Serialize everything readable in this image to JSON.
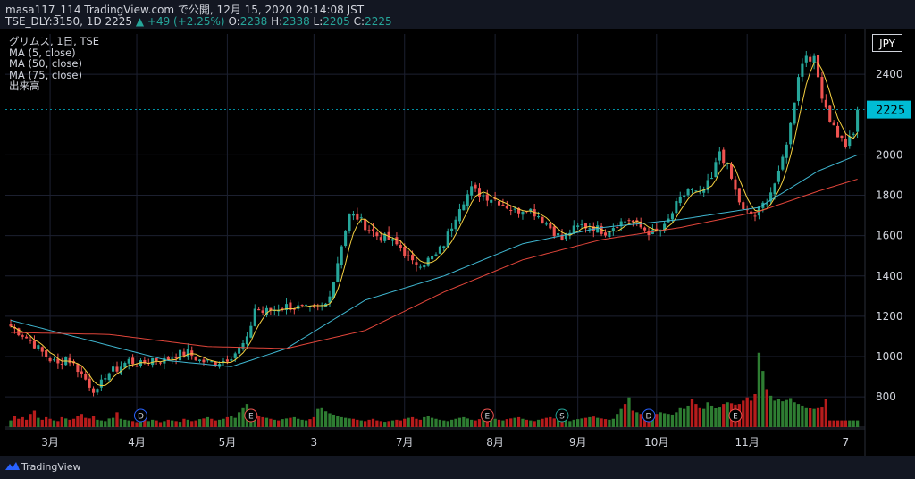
{
  "header": {
    "publish_line": "masa117_114 TradingView.com で公開, 12月 15, 2020 20:14:08 JST",
    "symbol": "TSE_DLY:3150, 1D 2225",
    "change": "▲ +49 (+2.25%)",
    "o_label": "O:",
    "o_value": "2238",
    "h_label": "H:",
    "h_value": "2338",
    "l_label": "L:",
    "l_value": "2205",
    "c_label": "C:",
    "c_value": "2225"
  },
  "legend": {
    "title": "グリムス, 1日, TSE",
    "ma5": "MA (5, close)",
    "ma50": "MA (50, close)",
    "ma75": "MA (75, close)",
    "volume": "出来高"
  },
  "currency": "JPY",
  "price_badge": "2225",
  "footer": {
    "brand": "TradingView"
  },
  "colors": {
    "up": "#26a69a",
    "down": "#ef5350",
    "vol_up": "#2e7d32",
    "vol_down": "#b71c1c",
    "ma5": "#f5d041",
    "ma50": "#3fb6d0",
    "ma75": "#e0453a",
    "badge": "#00bcd4"
  },
  "chart_data": {
    "type": "candlestick",
    "title": "グリムス, 1日, TSE",
    "ylim": [
      650,
      2600
    ],
    "y_ticks": [
      "800",
      "1000",
      "1200",
      "1400",
      "1600",
      "1800",
      "2000",
      "2400"
    ],
    "y_tick_values": [
      800,
      1000,
      1200,
      1400,
      1600,
      1800,
      2000,
      2400
    ],
    "x_ticks": [
      "3月",
      "4月",
      "5月",
      "3",
      "7月",
      "8月",
      "9月",
      "10月",
      "11月",
      "7"
    ],
    "x_tick_index": [
      10,
      32,
      55,
      77,
      100,
      123,
      144,
      164,
      187,
      212
    ],
    "last_price": 2225,
    "events": [
      {
        "label": "D",
        "index": 33,
        "kind": "dividend"
      },
      {
        "label": "E",
        "index": 61,
        "kind": "earnings"
      },
      {
        "label": "E",
        "index": 121,
        "kind": "earnings"
      },
      {
        "label": "S",
        "index": 140,
        "kind": "split"
      },
      {
        "label": "D",
        "index": 162,
        "kind": "dividend"
      },
      {
        "label": "E",
        "index": 184,
        "kind": "earnings"
      }
    ],
    "anchors": [
      [
        0,
        1150
      ],
      [
        3,
        1110
      ],
      [
        6,
        1060
      ],
      [
        9,
        1000
      ],
      [
        12,
        960
      ],
      [
        14,
        1000
      ],
      [
        17,
        940
      ],
      [
        20,
        860
      ],
      [
        22,
        820
      ],
      [
        24,
        910
      ],
      [
        27,
        940
      ],
      [
        30,
        980
      ],
      [
        33,
        960
      ],
      [
        36,
        990
      ],
      [
        39,
        980
      ],
      [
        42,
        1010
      ],
      [
        45,
        1020
      ],
      [
        48,
        980
      ],
      [
        51,
        970
      ],
      [
        54,
        980
      ],
      [
        57,
        1020
      ],
      [
        60,
        1080
      ],
      [
        62,
        1240
      ],
      [
        64,
        1220
      ],
      [
        66,
        1230
      ],
      [
        70,
        1250
      ],
      [
        74,
        1240
      ],
      [
        77,
        1230
      ],
      [
        80,
        1260
      ],
      [
        82,
        1380
      ],
      [
        84,
        1560
      ],
      [
        86,
        1700
      ],
      [
        88,
        1690
      ],
      [
        90,
        1650
      ],
      [
        93,
        1600
      ],
      [
        96,
        1580
      ],
      [
        99,
        1540
      ],
      [
        102,
        1460
      ],
      [
        105,
        1470
      ],
      [
        108,
        1500
      ],
      [
        110,
        1560
      ],
      [
        112,
        1650
      ],
      [
        114,
        1750
      ],
      [
        117,
        1830
      ],
      [
        120,
        1800
      ],
      [
        123,
        1780
      ],
      [
        125,
        1760
      ],
      [
        128,
        1720
      ],
      [
        131,
        1740
      ],
      [
        134,
        1700
      ],
      [
        137,
        1640
      ],
      [
        140,
        1580
      ],
      [
        142,
        1620
      ],
      [
        145,
        1650
      ],
      [
        148,
        1640
      ],
      [
        151,
        1620
      ],
      [
        154,
        1660
      ],
      [
        157,
        1680
      ],
      [
        160,
        1640
      ],
      [
        163,
        1610
      ],
      [
        166,
        1640
      ],
      [
        169,
        1750
      ],
      [
        172,
        1830
      ],
      [
        175,
        1800
      ],
      [
        178,
        1880
      ],
      [
        180,
        2020
      ],
      [
        182,
        1940
      ],
      [
        184,
        1820
      ],
      [
        186,
        1720
      ],
      [
        189,
        1700
      ],
      [
        192,
        1780
      ],
      [
        195,
        1900
      ],
      [
        198,
        2150
      ],
      [
        200,
        2400
      ],
      [
        202,
        2500
      ],
      [
        204,
        2470
      ],
      [
        206,
        2300
      ],
      [
        208,
        2180
      ],
      [
        210,
        2100
      ],
      [
        212,
        2050
      ],
      [
        214,
        2100
      ],
      [
        215,
        2225
      ]
    ],
    "ma50_anchors": [
      [
        0,
        1180
      ],
      [
        20,
        1080
      ],
      [
        40,
        980
      ],
      [
        56,
        950
      ],
      [
        70,
        1040
      ],
      [
        90,
        1280
      ],
      [
        110,
        1400
      ],
      [
        130,
        1560
      ],
      [
        150,
        1640
      ],
      [
        170,
        1680
      ],
      [
        190,
        1740
      ],
      [
        205,
        1920
      ],
      [
        215,
        2000
      ]
    ],
    "ma75_anchors": [
      [
        0,
        1120
      ],
      [
        25,
        1110
      ],
      [
        50,
        1050
      ],
      [
        70,
        1040
      ],
      [
        90,
        1130
      ],
      [
        110,
        1320
      ],
      [
        130,
        1480
      ],
      [
        150,
        1580
      ],
      [
        170,
        1640
      ],
      [
        190,
        1720
      ],
      [
        205,
        1820
      ],
      [
        215,
        1880
      ]
    ],
    "volume_relative": [
      0.2,
      0.35,
      0.25,
      0.3,
      0.22,
      0.4,
      0.5,
      0.28,
      0.22,
      0.3,
      0.25,
      0.2,
      0.18,
      0.3,
      0.26,
      0.22,
      0.25,
      0.35,
      0.4,
      0.28,
      0.26,
      0.35,
      0.22,
      0.2,
      0.18,
      0.26,
      0.28,
      0.45,
      0.25,
      0.22,
      0.2,
      0.18,
      0.15,
      0.2,
      0.25,
      0.18,
      0.22,
      0.2,
      0.15,
      0.18,
      0.22,
      0.2,
      0.18,
      0.16,
      0.25,
      0.22,
      0.18,
      0.2,
      0.24,
      0.26,
      0.3,
      0.25,
      0.2,
      0.22,
      0.25,
      0.3,
      0.35,
      0.28,
      0.45,
      0.6,
      0.7,
      0.55,
      0.4,
      0.35,
      0.3,
      0.28,
      0.25,
      0.22,
      0.2,
      0.24,
      0.26,
      0.28,
      0.3,
      0.25,
      0.22,
      0.2,
      0.24,
      0.3,
      0.55,
      0.6,
      0.48,
      0.42,
      0.38,
      0.35,
      0.3,
      0.28,
      0.26,
      0.25,
      0.22,
      0.2,
      0.18,
      0.22,
      0.25,
      0.2,
      0.18,
      0.16,
      0.18,
      0.2,
      0.22,
      0.2,
      0.25,
      0.28,
      0.3,
      0.25,
      0.22,
      0.3,
      0.35,
      0.28,
      0.25,
      0.22,
      0.2,
      0.18,
      0.22,
      0.25,
      0.28,
      0.3,
      0.26,
      0.22,
      0.2,
      0.24,
      0.26,
      0.3,
      0.28,
      0.25,
      0.22,
      0.2,
      0.24,
      0.26,
      0.28,
      0.3,
      0.25,
      0.22,
      0.2,
      0.18,
      0.22,
      0.25,
      0.28,
      0.3,
      0.26,
      0.24,
      0.22,
      0.2,
      0.18,
      0.22,
      0.24,
      0.26,
      0.28,
      0.3,
      0.32,
      0.28,
      0.26,
      0.24,
      0.22,
      0.25,
      0.4,
      0.55,
      0.7,
      0.9,
      0.5,
      0.45,
      0.4,
      0.38,
      0.36,
      0.34,
      0.4,
      0.45,
      0.42,
      0.4,
      0.38,
      0.45,
      0.6,
      0.55,
      0.65,
      0.85,
      0.7,
      0.6,
      0.55,
      0.75,
      0.65,
      0.58,
      0.62,
      0.7,
      0.75,
      0.72,
      0.68,
      0.7,
      0.8,
      0.9,
      0.8,
      1.0,
      2.25,
      1.7,
      1.15,
      0.95,
      0.8,
      0.85,
      0.78,
      0.82,
      0.88,
      0.75,
      0.7,
      0.65,
      0.6,
      0.58,
      0.55,
      0.6,
      0.62,
      0.85
    ]
  }
}
